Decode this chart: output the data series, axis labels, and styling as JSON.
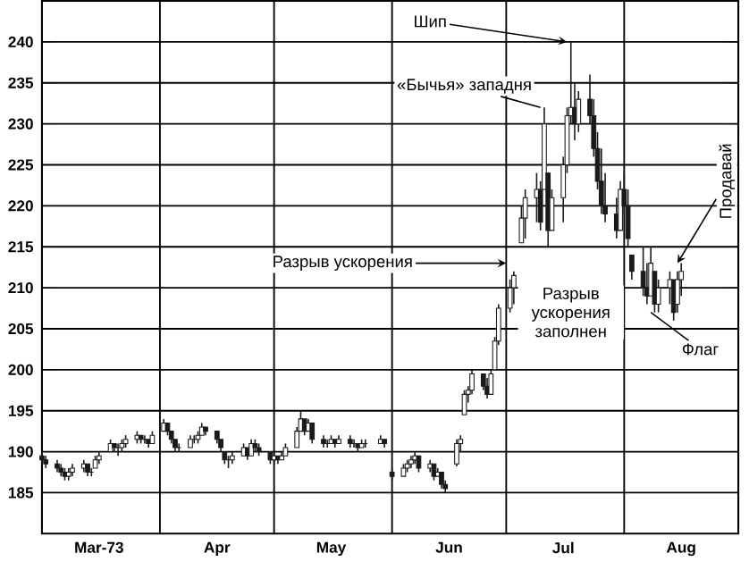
{
  "chart_data": {
    "type": "candlestick",
    "color": "#1a1a1a",
    "x": [
      "1973-03-01",
      "1973-03-02",
      "1973-03-05",
      "1973-03-06",
      "1973-03-07",
      "1973-03-08",
      "1973-03-09",
      "1973-03-12",
      "1973-03-13",
      "1973-03-14",
      "1973-03-15",
      "1973-03-16",
      "1973-03-19",
      "1973-03-20",
      "1973-03-21",
      "1973-03-22",
      "1973-03-23",
      "1973-03-26",
      "1973-03-27",
      "1973-03-28",
      "1973-03-29",
      "1973-03-30",
      "1973-04-02",
      "1973-04-03",
      "1973-04-04",
      "1973-04-05",
      "1973-04-06",
      "1973-04-09",
      "1973-04-10",
      "1973-04-11",
      "1973-04-12",
      "1973-04-13",
      "1973-04-16",
      "1973-04-17",
      "1973-04-18",
      "1973-04-19",
      "1973-04-20",
      "1973-04-23",
      "1973-04-24",
      "1973-04-25",
      "1973-04-26",
      "1973-04-27",
      "1973-04-30",
      "1973-05-01",
      "1973-05-02",
      "1973-05-03",
      "1973-05-04",
      "1973-05-07",
      "1973-05-08",
      "1973-05-09",
      "1973-05-10",
      "1973-05-11",
      "1973-05-14",
      "1973-05-15",
      "1973-05-16",
      "1973-05-17",
      "1973-05-18",
      "1973-05-21",
      "1973-05-22",
      "1973-05-23",
      "1973-05-24",
      "1973-05-25",
      "1973-05-29",
      "1973-05-30",
      "1973-06-01",
      "1973-06-04",
      "1973-06-05",
      "1973-06-06",
      "1973-06-07",
      "1973-06-08",
      "1973-06-11",
      "1973-06-12",
      "1973-06-13",
      "1973-06-14",
      "1973-06-15",
      "1973-06-18",
      "1973-06-19",
      "1973-06-20",
      "1973-06-21",
      "1973-06-22",
      "1973-06-25",
      "1973-06-26",
      "1973-06-27",
      "1973-06-28",
      "1973-06-29",
      "1973-07-02",
      "1973-07-03",
      "1973-07-05",
      "1973-07-06",
      "1973-07-09",
      "1973-07-10",
      "1973-07-11",
      "1973-07-12",
      "1973-07-13",
      "1973-07-16",
      "1973-07-17",
      "1973-07-18",
      "1973-07-19",
      "1973-07-20",
      "1973-07-23",
      "1973-07-24",
      "1973-07-25",
      "1973-07-26",
      "1973-07-27",
      "1973-07-30",
      "1973-07-31",
      "1973-08-01",
      "1973-08-02",
      "1973-08-03",
      "1973-08-06",
      "1973-08-07",
      "1973-08-08",
      "1973-08-09",
      "1973-08-10",
      "1973-08-13",
      "1973-08-14",
      "1973-08-15",
      "1973-08-16"
    ],
    "ohlc": [
      [
        189.5,
        190,
        188.5,
        189
      ],
      [
        189,
        189.5,
        188,
        188.5
      ],
      [
        188.5,
        189,
        187.5,
        188
      ],
      [
        188,
        188.5,
        187,
        187.5
      ],
      [
        187.5,
        188,
        186.5,
        187
      ],
      [
        187,
        188,
        186.5,
        187.5
      ],
      [
        187.5,
        188.5,
        187,
        188
      ],
      [
        188,
        189,
        187.5,
        188.5
      ],
      [
        188.5,
        188.5,
        187,
        187.5
      ],
      [
        187.5,
        188,
        187,
        187.5
      ],
      [
        188,
        189.5,
        188,
        189
      ],
      [
        189,
        190,
        188.5,
        189.5
      ],
      [
        190,
        191.5,
        190,
        191
      ],
      [
        191,
        191,
        190,
        190.5
      ],
      [
        190.5,
        191,
        189.5,
        190.5
      ],
      [
        190.5,
        191.5,
        190,
        191
      ],
      [
        191,
        192,
        190.5,
        191.5
      ],
      [
        191.5,
        192.5,
        191,
        192
      ],
      [
        192,
        192,
        191,
        191.5
      ],
      [
        191.5,
        192,
        191,
        191.5
      ],
      [
        191.5,
        191.5,
        190.5,
        191
      ],
      [
        191,
        192.5,
        191,
        192
      ],
      [
        192.5,
        194,
        192.5,
        193.5
      ],
      [
        193.5,
        193.5,
        192,
        192.5
      ],
      [
        192.5,
        192.5,
        191,
        191.5
      ],
      [
        191.5,
        191.5,
        190,
        190.5
      ],
      [
        190.5,
        191,
        190,
        190.5
      ],
      [
        190.5,
        192,
        190.5,
        191.5
      ],
      [
        191.5,
        192,
        191,
        191.5
      ],
      [
        191.5,
        192.5,
        191,
        192
      ],
      [
        192,
        193.5,
        192,
        193
      ],
      [
        193,
        193,
        192,
        192.5
      ],
      [
        192.5,
        192.5,
        191,
        191.5
      ],
      [
        191.5,
        191.5,
        190,
        190.5
      ],
      [
        190,
        190,
        188.5,
        189
      ],
      [
        189,
        189.5,
        188,
        189
      ],
      [
        189,
        190,
        188.5,
        189.5
      ],
      [
        189.5,
        191,
        189.5,
        190.5
      ],
      [
        190.5,
        190.5,
        189,
        189.5
      ],
      [
        189.5,
        191.5,
        189.5,
        191
      ],
      [
        191,
        191.5,
        190,
        190.5
      ],
      [
        190.5,
        191,
        189.5,
        190
      ],
      [
        190,
        190,
        188.5,
        189
      ],
      [
        189,
        190,
        188.5,
        189.5
      ],
      [
        189.5,
        189.5,
        188.5,
        189
      ],
      [
        189,
        190,
        189,
        189.5
      ],
      [
        189.5,
        191,
        189.5,
        190.5
      ],
      [
        190.5,
        193,
        190.5,
        192.5
      ],
      [
        192.5,
        195,
        192.5,
        194
      ],
      [
        194,
        194,
        192,
        192.5
      ],
      [
        192.5,
        194,
        192.5,
        193.5
      ],
      [
        193.5,
        193.5,
        191,
        191.5
      ],
      [
        191.5,
        192,
        190.5,
        191
      ],
      [
        191,
        191.5,
        190.5,
        191
      ],
      [
        191,
        192,
        191,
        191.5
      ],
      [
        191.5,
        191.5,
        190.5,
        191
      ],
      [
        191,
        192,
        191,
        191.5
      ],
      [
        191.5,
        192,
        190.5,
        191
      ],
      [
        191,
        191.5,
        190.5,
        191
      ],
      [
        191,
        191,
        190,
        190.5
      ],
      [
        190.5,
        191.5,
        190.5,
        191
      ],
      [
        191,
        191.5,
        190.5,
        191
      ],
      [
        191,
        192,
        191,
        191.5
      ],
      [
        191.5,
        191.5,
        190.5,
        191
      ],
      [
        187.5,
        188,
        186.5,
        187
      ],
      [
        187,
        188.5,
        187,
        188
      ],
      [
        188,
        189,
        187.5,
        188.5
      ],
      [
        188.5,
        189.5,
        188,
        189
      ],
      [
        189,
        190,
        188.5,
        189.5
      ],
      [
        189.5,
        189.5,
        187.5,
        188
      ],
      [
        188,
        189,
        187.5,
        188.5
      ],
      [
        188.5,
        188.5,
        186.5,
        187
      ],
      [
        187,
        188,
        187,
        187.5
      ],
      [
        187.5,
        187.5,
        185.5,
        186
      ],
      [
        186,
        186.5,
        185,
        185.5
      ],
      [
        188.5,
        191.5,
        188.2,
        191
      ],
      [
        191,
        192,
        190,
        191.5
      ],
      [
        194.5,
        197.5,
        194.5,
        197
      ],
      [
        197,
        198,
        196,
        197.5
      ],
      [
        197.5,
        200,
        197,
        199.5
      ],
      [
        199.5,
        199.5,
        197.5,
        198
      ],
      [
        198,
        199,
        196.5,
        197
      ],
      [
        197,
        200,
        197,
        199.5
      ],
      [
        200,
        204,
        200,
        203.5
      ],
      [
        203.5,
        208,
        203,
        207.5
      ],
      [
        207.5,
        211,
        207,
        210
      ],
      [
        210,
        212,
        208,
        211.5
      ],
      [
        215.5,
        220,
        215.5,
        218.5
      ],
      [
        218.5,
        222,
        216,
        221
      ],
      [
        221,
        224,
        218,
        222
      ],
      [
        222,
        223,
        217,
        218
      ],
      [
        222,
        232,
        222,
        230
      ],
      [
        224,
        224,
        215,
        217
      ],
      [
        217,
        222,
        217,
        221
      ],
      [
        221,
        226,
        218,
        225
      ],
      [
        225,
        232,
        224,
        231
      ],
      [
        231,
        240,
        230,
        232
      ],
      [
        232,
        235,
        228,
        230
      ],
      [
        230,
        234,
        229,
        233
      ],
      [
        233,
        236,
        230,
        231
      ],
      [
        231,
        233,
        226,
        227
      ],
      [
        227,
        229,
        222,
        223
      ],
      [
        223,
        227,
        219,
        220
      ],
      [
        220,
        224,
        218,
        219
      ],
      [
        219,
        221,
        216,
        217
      ],
      [
        217,
        223,
        217,
        222
      ],
      [
        222,
        224,
        219,
        220
      ],
      [
        220,
        222,
        215,
        216
      ],
      [
        214,
        214,
        211,
        212
      ],
      [
        212,
        215,
        209,
        210
      ],
      [
        210,
        213,
        208,
        209
      ],
      [
        209,
        215,
        209,
        213
      ],
      [
        212,
        212,
        207,
        208
      ],
      [
        208,
        211,
        207,
        210
      ],
      [
        210,
        212,
        208,
        211
      ],
      [
        211,
        211,
        206,
        207
      ],
      [
        208,
        212,
        207,
        211
      ],
      [
        211,
        213,
        209,
        212
      ]
    ],
    "xlim": [
      "1973-03-01",
      "1973-08-31"
    ],
    "xticks": [
      {
        "value": "1973-03-16",
        "label": "Mar-73"
      },
      {
        "value": "1973-04-16",
        "label": "Apr"
      },
      {
        "value": "1973-05-16",
        "label": "May"
      },
      {
        "value": "1973-06-16",
        "label": "Jun"
      },
      {
        "value": "1973-07-16",
        "label": "Jul"
      },
      {
        "value": "1973-08-16",
        "label": "Aug"
      },
      {
        "value": "1973-04-01",
        "label": null
      },
      {
        "value": "1973-05-01",
        "label": null
      },
      {
        "value": "1973-06-01",
        "label": null
      },
      {
        "value": "1973-07-01",
        "label": null
      },
      {
        "value": "1973-08-01",
        "label": null
      }
    ],
    "ylim": [
      180,
      245
    ],
    "yticks": [
      185,
      190,
      195,
      200,
      205,
      210,
      215,
      220,
      225,
      230,
      235,
      240
    ],
    "grid": true,
    "annotations": [
      {
        "text": "Шип",
        "x": "1973-07-18",
        "y": 240
      },
      {
        "text": "«Бычья» западня",
        "x": "1973-07-11",
        "y": 232
      },
      "Разрыв ускорения",
      {
        "text": "Разрыв ускорения заполнен",
        "x": "1973-07-12",
        "y": 215
      },
      {
        "text": "Флаг",
        "x": "1973-08-09",
        "y": 207
      },
      {
        "text": "Продавай",
        "x": "1973-08-16",
        "y": 213
      }
    ]
  }
}
